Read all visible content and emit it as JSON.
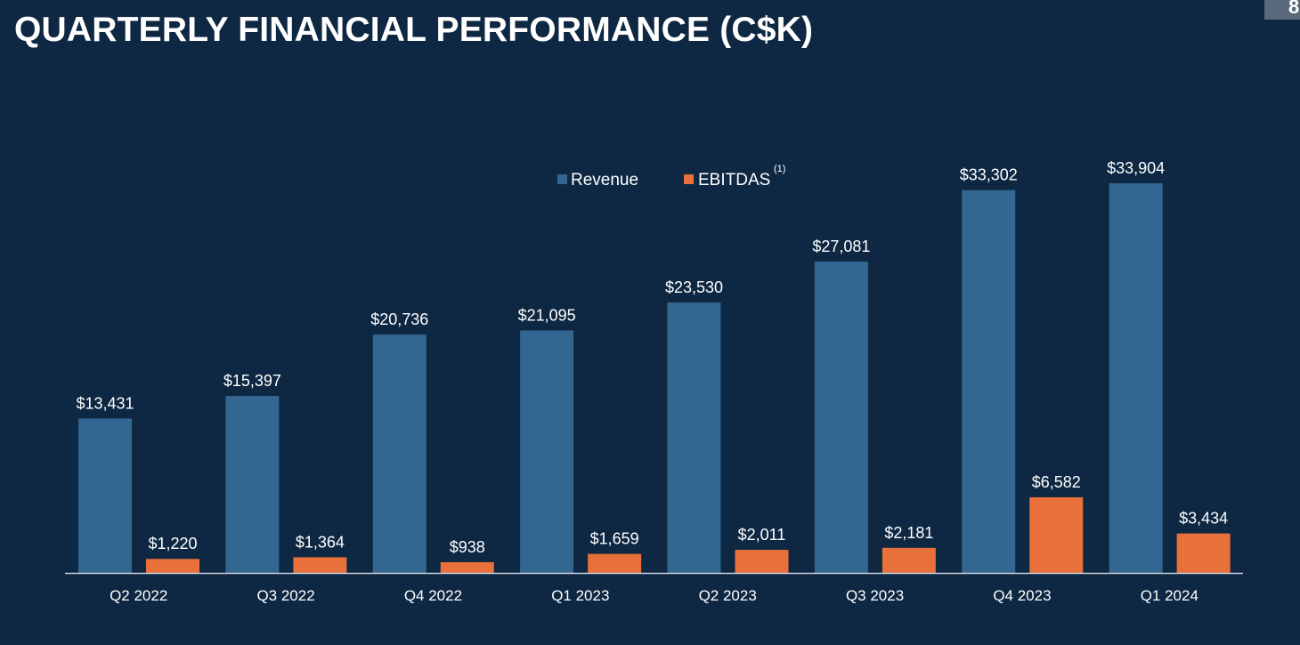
{
  "slide": {
    "title": "QUARTERLY FINANCIAL PERFORMANCE (C$K)",
    "page_number": "8"
  },
  "colors": {
    "background": "#0e2742",
    "revenue": "#336792",
    "ebitdas": "#e8703a",
    "axis": "#c8d0da",
    "text": "#ffffff"
  },
  "chart_data": {
    "type": "bar",
    "categories": [
      "Q2 2022",
      "Q3 2022",
      "Q4 2022",
      "Q1 2023",
      "Q2 2023",
      "Q3 2023",
      "Q4 2023",
      "Q1 2024"
    ],
    "series": [
      {
        "name": "Revenue",
        "values": [
          13431,
          15397,
          20736,
          21095,
          23530,
          27081,
          33302,
          33904
        ],
        "labels": [
          "$13,431",
          "$15,397",
          "$20,736",
          "$21,095",
          "$23,530",
          "$27,081",
          "$33,302",
          "$33,904"
        ]
      },
      {
        "name": "EBITDAS",
        "footnote_marker": "(1)",
        "values": [
          1220,
          1364,
          938,
          1659,
          2011,
          2181,
          6582,
          3434
        ],
        "labels": [
          "$1,220",
          "$1,364",
          "$938",
          "$1,659",
          "$2,011",
          "$2,181",
          "$6,582",
          "$3,434"
        ]
      }
    ],
    "title": "",
    "xlabel": "",
    "ylabel": "",
    "ylim": [
      0,
      35000
    ],
    "grid": false,
    "legend_position": "top-center"
  }
}
